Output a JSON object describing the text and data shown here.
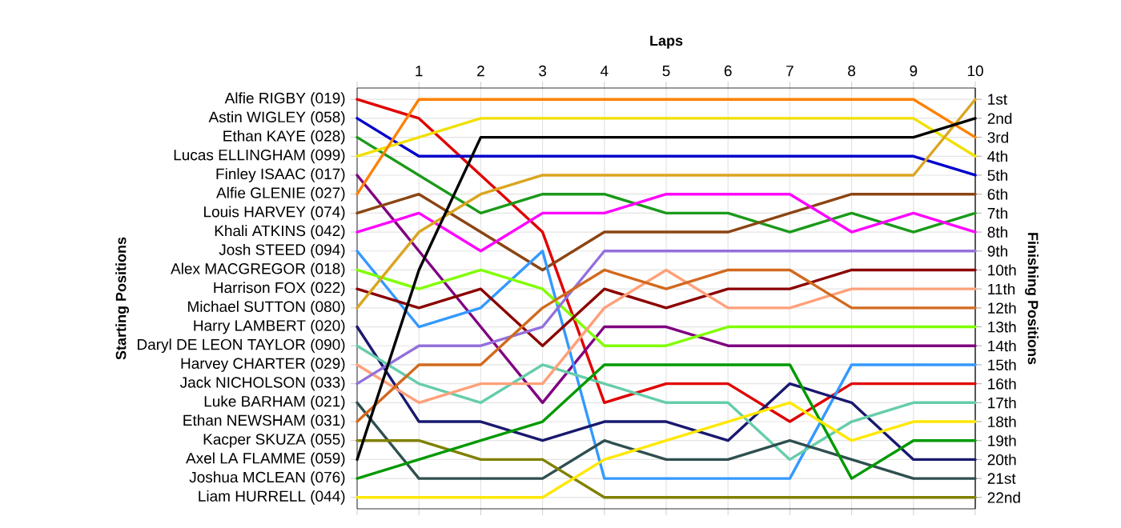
{
  "chart_data": {
    "type": "line",
    "xlabel": "Laps",
    "annotations": [
      "Starting Positions"
    ],
    "y2label": "Finishing Positions",
    "x": [
      0,
      1,
      2,
      3,
      4,
      5,
      6,
      7,
      8,
      9,
      10
    ],
    "xlim": [
      0,
      10
    ],
    "xticks": [
      {
        "value": 0,
        "label": null
      },
      1,
      2,
      3,
      4,
      5,
      6,
      7,
      8,
      9,
      10
    ],
    "y2lim": [
      22.6,
      0.4
    ],
    "y2ticks": [
      {
        "value": 1,
        "label": "1st"
      },
      {
        "value": 2,
        "label": "2nd"
      },
      {
        "value": 3,
        "label": "3rd"
      },
      {
        "value": 4,
        "label": "4th"
      },
      {
        "value": 5,
        "label": "5th"
      },
      {
        "value": 6,
        "label": "6th"
      },
      {
        "value": 7,
        "label": "7th"
      },
      {
        "value": 8,
        "label": "8th"
      },
      {
        "value": 9,
        "label": "9th"
      },
      {
        "value": 10,
        "label": "10th"
      },
      {
        "value": 11,
        "label": "11th"
      },
      {
        "value": 12,
        "label": "12th"
      },
      {
        "value": 13,
        "label": "13th"
      },
      {
        "value": 14,
        "label": "14th"
      },
      {
        "value": 15,
        "label": "15th"
      },
      {
        "value": 16,
        "label": "16th"
      },
      {
        "value": 17,
        "label": "17th"
      },
      {
        "value": 18,
        "label": "18th"
      },
      {
        "value": 19,
        "label": "19th"
      },
      {
        "value": 20,
        "label": "20th"
      },
      {
        "value": 21,
        "label": "21st"
      },
      {
        "value": 22,
        "label": "22nd"
      }
    ],
    "grid": true,
    "line_style": "solid",
    "series": [
      {
        "name": "Alfie RIGBY (019)",
        "axis": "y2",
        "color": "#e00000",
        "values": [
          1,
          2,
          5,
          8,
          17,
          16,
          16,
          18,
          16,
          16,
          16
        ]
      },
      {
        "name": "Astin WIGLEY (058)",
        "axis": "y2",
        "color": "#0000cc",
        "values": [
          2,
          4,
          4,
          4,
          4,
          4,
          4,
          4,
          4,
          4,
          5
        ]
      },
      {
        "name": "Ethan KAYE (028)",
        "axis": "y2",
        "color": "#1a9a1a",
        "values": [
          3,
          5,
          7,
          6,
          6,
          7,
          7,
          8,
          7,
          8,
          7
        ]
      },
      {
        "name": "Lucas ELLINGHAM (099)",
        "axis": "y2",
        "color": "#f0e000",
        "values": [
          4,
          3,
          2,
          2,
          2,
          2,
          2,
          2,
          2,
          2,
          4
        ]
      },
      {
        "name": "Finley ISAAC (017)",
        "axis": "y2",
        "color": "#800080",
        "values": [
          5,
          9,
          13,
          17,
          13,
          13,
          14,
          14,
          14,
          14,
          14
        ]
      },
      {
        "name": "Alfie GLENIE (027)",
        "axis": "y2",
        "color": "#ff8000",
        "values": [
          6,
          1,
          1,
          1,
          1,
          1,
          1,
          1,
          1,
          1,
          3
        ]
      },
      {
        "name": "Louis HARVEY (074)",
        "axis": "y2",
        "color": "#8b4513",
        "values": [
          7,
          6,
          8,
          10,
          8,
          8,
          8,
          7,
          6,
          6,
          6
        ]
      },
      {
        "name": "Khali ATKINS (042)",
        "axis": "y2",
        "color": "#ff00ff",
        "values": [
          8,
          7,
          9,
          7,
          7,
          6,
          6,
          6,
          8,
          7,
          8
        ]
      },
      {
        "name": "Josh STEED (094)",
        "axis": "y2",
        "color": "#3399ff",
        "values": [
          9,
          13,
          12,
          9,
          21,
          21,
          21,
          21,
          15,
          15,
          15
        ]
      },
      {
        "name": "Alex MACGREGOR (018)",
        "axis": "y2",
        "color": "#80ff00",
        "values": [
          10,
          11,
          10,
          11,
          14,
          14,
          13,
          13,
          13,
          13,
          13
        ]
      },
      {
        "name": "Harrison FOX (022)",
        "axis": "y2",
        "color": "#8b0000",
        "values": [
          11,
          12,
          11,
          14,
          11,
          12,
          11,
          11,
          10,
          10,
          10
        ]
      },
      {
        "name": "Michael SUTTON (080)",
        "axis": "y2",
        "color": "#daa520",
        "values": [
          12,
          8,
          6,
          5,
          5,
          5,
          5,
          5,
          5,
          5,
          1
        ]
      },
      {
        "name": "Harry LAMBERT (020)",
        "axis": "y2",
        "color": "#191970",
        "values": [
          13,
          18,
          18,
          19,
          18,
          18,
          19,
          16,
          17,
          20,
          20
        ]
      },
      {
        "name": "Daryl DE LEON TAYLOR (090)",
        "axis": "y2",
        "color": "#66cdaa",
        "values": [
          14,
          16,
          17,
          15,
          16,
          17,
          17,
          20,
          18,
          17,
          17
        ]
      },
      {
        "name": "Harvey CHARTER (029)",
        "axis": "y2",
        "color": "#ffa07a",
        "values": [
          15,
          17,
          16,
          16,
          12,
          10,
          12,
          12,
          11,
          11,
          11
        ]
      },
      {
        "name": "Jack NICHOLSON (033)",
        "axis": "y2",
        "color": "#9370db",
        "values": [
          16,
          14,
          14,
          13,
          9,
          9,
          9,
          9,
          9,
          9,
          9
        ]
      },
      {
        "name": "Luke BARHAM (021)",
        "axis": "y2",
        "color": "#2f4f4f",
        "values": [
          17,
          21,
          21,
          21,
          19,
          20,
          20,
          19,
          20,
          21,
          21
        ]
      },
      {
        "name": "Ethan NEWSHAM (031)",
        "axis": "y2",
        "color": "#d2691e",
        "values": [
          18,
          15,
          15,
          12,
          10,
          11,
          10,
          10,
          12,
          12,
          12
        ]
      },
      {
        "name": "Kacper SKUZA (055)",
        "axis": "y2",
        "color": "#808000",
        "values": [
          19,
          19,
          20,
          20,
          22,
          22,
          22,
          22,
          22,
          22,
          22
        ]
      },
      {
        "name": "Axel LA FLAMME (059)",
        "axis": "y2",
        "color": "#000000",
        "values": [
          20,
          10,
          3,
          3,
          3,
          3,
          3,
          3,
          3,
          3,
          2
        ]
      },
      {
        "name": "Joshua MCLEAN (076)",
        "axis": "y2",
        "color": "#009900",
        "values": [
          21,
          20,
          19,
          18,
          15,
          15,
          15,
          15,
          21,
          19,
          19
        ]
      },
      {
        "name": "Liam HURRELL (044)",
        "axis": "y2",
        "color": "#ffe800",
        "values": [
          22,
          22,
          22,
          22,
          20,
          19,
          18,
          17,
          19,
          18,
          18
        ]
      }
    ]
  }
}
